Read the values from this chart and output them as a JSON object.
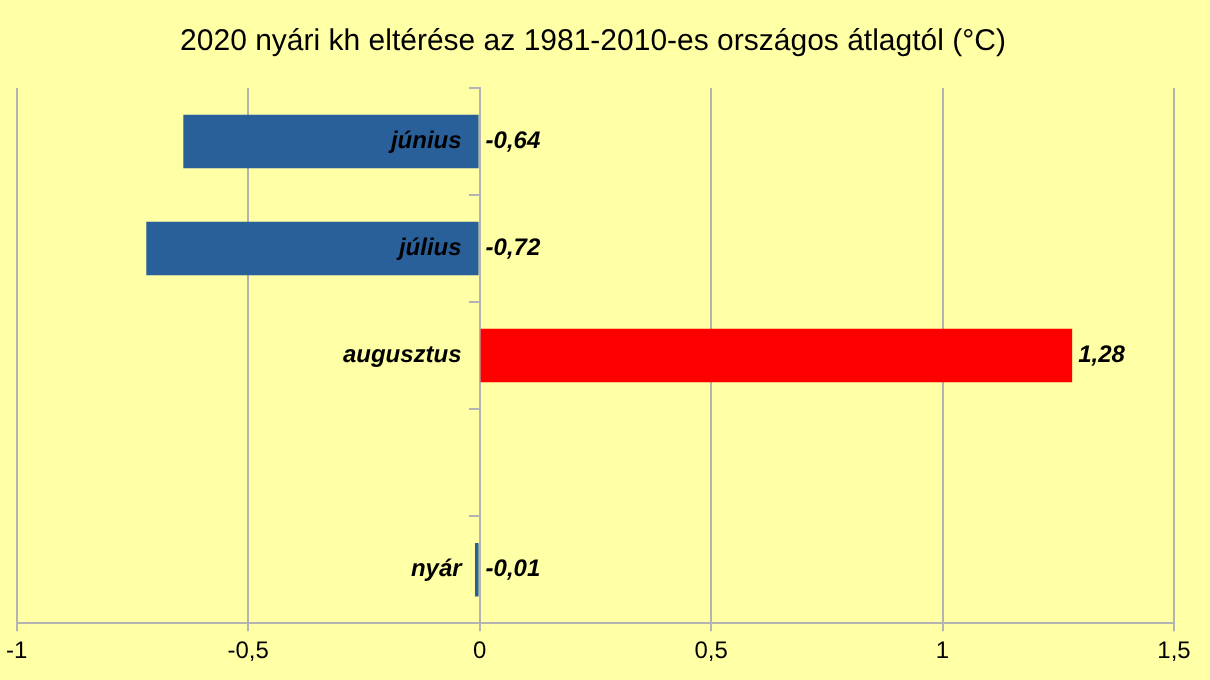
{
  "chart_data": {
    "type": "bar",
    "orientation": "horizontal",
    "title": "2020 nyári kh eltérése az 1981-2010-es országos átlagtól (°C)",
    "categories": [
      "június",
      "július",
      "augusztus",
      null,
      "nyár"
    ],
    "values": [
      -0.64,
      -0.72,
      1.28,
      null,
      -0.01
    ],
    "colors": [
      "#2a6099",
      "#2a6099",
      "#ff0000",
      "#2a6099",
      "#2a6099"
    ],
    "value_labels": [
      "-0,64",
      "-0,72",
      "1,28",
      null,
      "-0,01"
    ],
    "xlim": [
      -1,
      1.5
    ],
    "xticks": [
      -1,
      {
        "value": -0.5,
        "label": "-0,5"
      },
      0,
      {
        "value": 0.5,
        "label": "0,5"
      },
      1,
      {
        "value": 1.5,
        "label": "1,5"
      }
    ],
    "grid": "x",
    "legend": false
  }
}
